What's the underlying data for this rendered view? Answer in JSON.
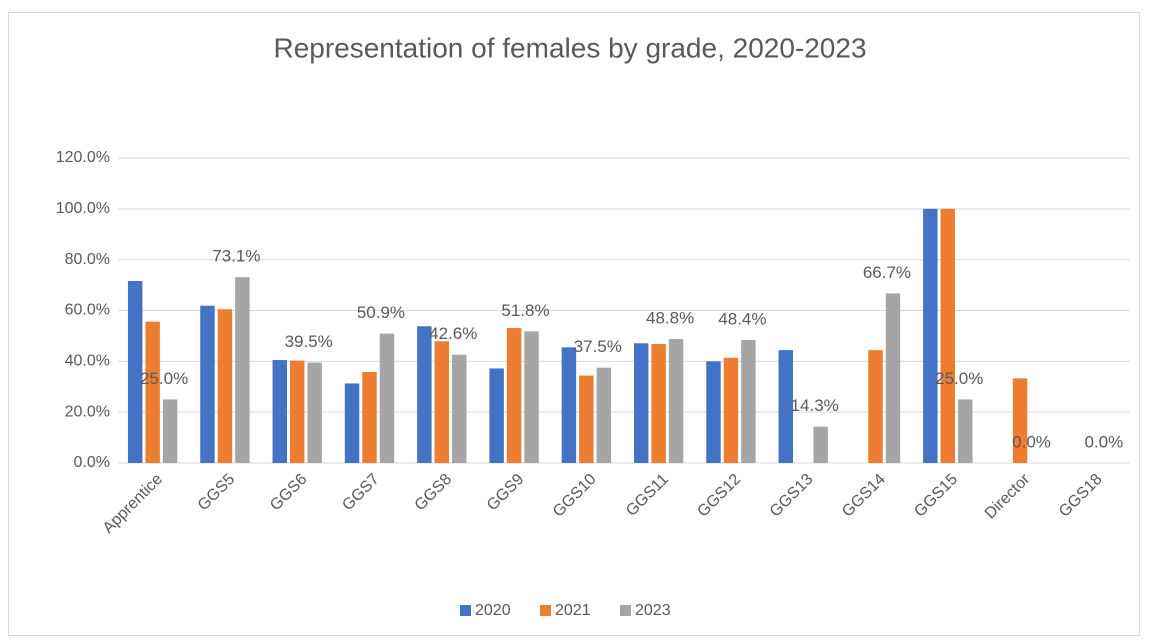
{
  "chart_data": {
    "type": "bar",
    "title": "Representation of females by grade, 2020-2023",
    "categories": [
      "Apprentice",
      "GGS5",
      "GGS6",
      "GGS7",
      "GGS8",
      "GGS9",
      "GGS10",
      "GGS11",
      "GGS12",
      "GGS13",
      "GGS14",
      "GGS15",
      "Director",
      "GGS18"
    ],
    "series": [
      {
        "name": "2020",
        "color": "#4472c4",
        "values": [
          71.6,
          61.9,
          40.5,
          31.3,
          53.8,
          37.2,
          45.5,
          47.1,
          40.0,
          44.4,
          null,
          100,
          null,
          null
        ]
      },
      {
        "name": "2021",
        "color": "#ed7d31",
        "values": [
          55.6,
          60.5,
          40.3,
          35.8,
          47.9,
          53.1,
          34.4,
          46.8,
          41.4,
          null,
          44.4,
          100,
          33.3,
          null
        ]
      },
      {
        "name": "2023",
        "color": "#a5a5a5",
        "values": [
          25.0,
          73.1,
          39.5,
          50.9,
          42.6,
          51.8,
          37.5,
          48.8,
          48.4,
          14.3,
          66.7,
          25.0,
          0.0,
          0.0
        ],
        "value_labels": [
          "25.0%",
          "73.1%",
          "39.5%",
          "50.9%",
          "42.6%",
          "51.8%",
          "37.5%",
          "48.8%",
          "48.4%",
          "14.3%",
          "66.7%",
          "25.0%",
          "0.0%",
          "0.0%"
        ]
      }
    ],
    "ylim": [
      0,
      120
    ],
    "yticks": [
      {
        "value": 0,
        "label": "0.0%"
      },
      {
        "value": 20,
        "label": "20.0%"
      },
      {
        "value": 40,
        "label": "40.0%"
      },
      {
        "value": 60,
        "label": "60.0%"
      },
      {
        "value": 80,
        "label": "80.0%"
      },
      {
        "value": 100,
        "label": "100.0%"
      },
      {
        "value": 120,
        "label": "120.0%"
      }
    ],
    "grid": true,
    "legend": "bottom"
  }
}
